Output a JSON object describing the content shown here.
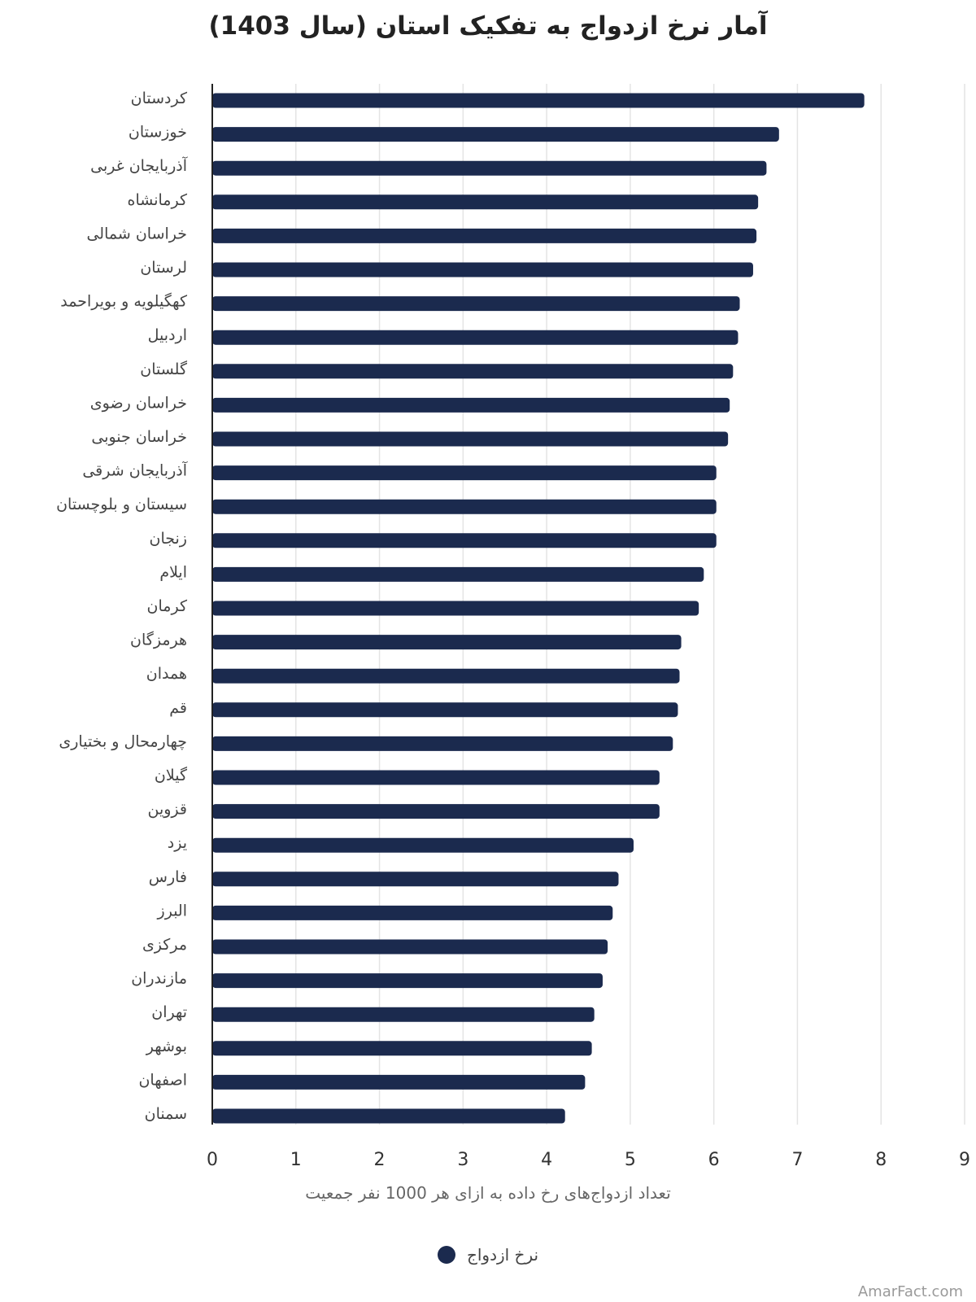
{
  "chart_data": {
    "type": "bar",
    "orientation": "horizontal",
    "title": "آمار نرخ ازدواج به تفکیک استان (سال 1403)",
    "xlabel": "تعداد ازدواج‌های رخ داده به ازای هر 1000 نفر جمعیت",
    "ylabel": "",
    "xlim": [
      0,
      9
    ],
    "ticks": [
      "0",
      "1",
      "2",
      "3",
      "4",
      "5",
      "6",
      "7",
      "8",
      "9"
    ],
    "grid": true,
    "legend_position": "bottom",
    "categories": [
      "کردستان",
      "خوزستان",
      "آذربایجان غربی",
      "کرمانشاه",
      "خراسان شمالی",
      "لرستان",
      "کهگیلویه و بویراحمد",
      "اردبیل",
      "گلستان",
      "خراسان رضوی",
      "خراسان جنوبی",
      "آذربایجان شرقی",
      "سیستان و بلوچستان",
      "زنجان",
      "ایلام",
      "کرمان",
      "هرمزگان",
      "همدان",
      "قم",
      "چهارمحال و بختیاری",
      "گیلان",
      "قزوین",
      "یزد",
      "فارس",
      "البرز",
      "مرکزی",
      "مازندران",
      "تهران",
      "بوشهر",
      "اصفهان",
      "سمنان"
    ],
    "series": [
      {
        "name": "نرخ ازدواج",
        "color": "#1b2a4e",
        "values": [
          7.8,
          6.78,
          6.63,
          6.53,
          6.51,
          6.47,
          6.31,
          6.29,
          6.23,
          6.19,
          6.17,
          6.03,
          6.03,
          6.03,
          5.88,
          5.82,
          5.61,
          5.59,
          5.57,
          5.51,
          5.35,
          5.35,
          5.04,
          4.86,
          4.79,
          4.73,
          4.67,
          4.57,
          4.54,
          4.46,
          4.22
        ]
      }
    ]
  },
  "watermark": "AmarFact.com"
}
